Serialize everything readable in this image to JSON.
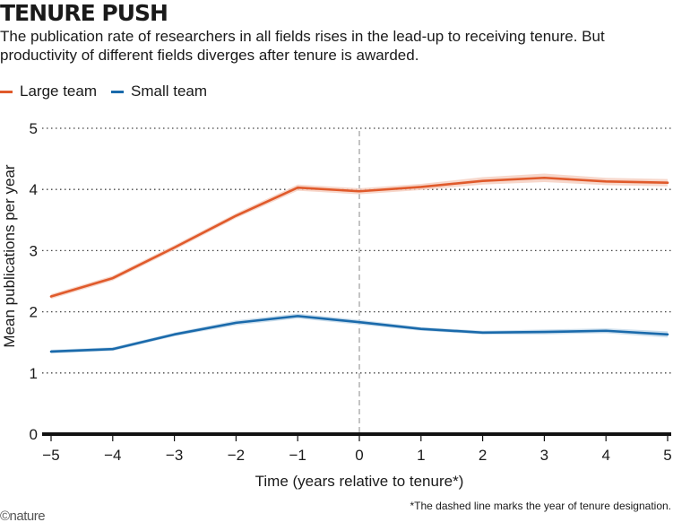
{
  "chart_data": {
    "type": "line",
    "title": "TENURE PUSH",
    "subtitle": "The publication rate of researchers in all fields rises in the lead-up to receiving tenure. But productivity of different fields diverges after tenure is awarded.",
    "xlabel": "Time (years relative to tenure*)",
    "ylabel": "Mean publications per year",
    "xlim": [
      -5,
      5
    ],
    "ylim": [
      0,
      5
    ],
    "x_ticks": [
      "−5",
      "−4",
      "−3",
      "−2",
      "−1",
      "0",
      "1",
      "2",
      "3",
      "4",
      "5"
    ],
    "y_ticks": [
      "0",
      "1",
      "2",
      "3",
      "4",
      "5"
    ],
    "x": [
      -5,
      -4,
      -3,
      -2,
      -1,
      0,
      1,
      2,
      3,
      4,
      5
    ],
    "series": [
      {
        "name": "Large team",
        "color": "#e05a2b",
        "band_color": "#f6d0c2",
        "values": [
          2.25,
          2.55,
          3.05,
          3.57,
          4.03,
          3.97,
          4.04,
          4.14,
          4.19,
          4.13,
          4.11
        ],
        "lower": [
          2.21,
          2.51,
          3.01,
          3.53,
          3.98,
          3.92,
          3.99,
          4.08,
          4.12,
          4.07,
          4.05
        ],
        "upper": [
          2.29,
          2.59,
          3.09,
          3.61,
          4.08,
          4.02,
          4.09,
          4.2,
          4.26,
          4.19,
          4.17
        ]
      },
      {
        "name": "Small team",
        "color": "#1a6aab",
        "band_color": "#c4d9ea",
        "values": [
          1.35,
          1.39,
          1.63,
          1.82,
          1.93,
          1.83,
          1.72,
          1.66,
          1.67,
          1.69,
          1.63
        ],
        "lower": [
          1.32,
          1.36,
          1.6,
          1.78,
          1.89,
          1.79,
          1.69,
          1.63,
          1.63,
          1.65,
          1.58
        ],
        "upper": [
          1.38,
          1.42,
          1.66,
          1.86,
          1.97,
          1.87,
          1.75,
          1.69,
          1.71,
          1.73,
          1.68
        ]
      }
    ],
    "grid": "horizontal dotted",
    "reference_line": {
      "x": 0,
      "style": "dashed",
      "color": "#aaaaaa"
    },
    "legend_placement": "top-left",
    "footnote": "*The dashed line marks the year of tenure designation.",
    "source": "©nature"
  }
}
